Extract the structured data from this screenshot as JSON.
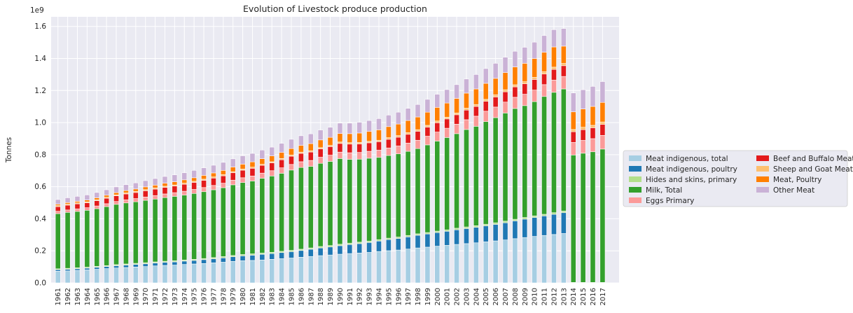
{
  "chart_data": {
    "type": "bar",
    "stacked": true,
    "title": "Evolution of Livestock produce production",
    "xlabel": "",
    "ylabel": "Tonnes",
    "y_multiplier": "1e9",
    "ylim": [
      0,
      1.66
    ],
    "yticks": [
      "0.0",
      "0.2",
      "0.4",
      "0.6",
      "0.8",
      "1.0",
      "1.2",
      "1.4",
      "1.6"
    ],
    "grid": true,
    "legend_placement": "center-right outside",
    "categories": [
      "1961",
      "1962",
      "1963",
      "1964",
      "1965",
      "1966",
      "1967",
      "1968",
      "1969",
      "1970",
      "1971",
      "1972",
      "1973",
      "1974",
      "1975",
      "1976",
      "1977",
      "1978",
      "1979",
      "1980",
      "1981",
      "1982",
      "1983",
      "1984",
      "1985",
      "1986",
      "1987",
      "1988",
      "1989",
      "1990",
      "1991",
      "1992",
      "1993",
      "1994",
      "1995",
      "1996",
      "1997",
      "1998",
      "1999",
      "2000",
      "2001",
      "2002",
      "2003",
      "2004",
      "2005",
      "2006",
      "2007",
      "2008",
      "2009",
      "2010",
      "2011",
      "2012",
      "2013",
      "2014",
      "2015",
      "2016",
      "2017"
    ],
    "series": [
      {
        "name": "Meat indigenous, total",
        "color": "#a6cee3",
        "values": [
          0.073,
          0.075,
          0.078,
          0.081,
          0.085,
          0.089,
          0.093,
          0.096,
          0.099,
          0.102,
          0.106,
          0.109,
          0.111,
          0.115,
          0.118,
          0.121,
          0.125,
          0.129,
          0.134,
          0.138,
          0.14,
          0.143,
          0.147,
          0.151,
          0.155,
          0.16,
          0.165,
          0.17,
          0.174,
          0.179,
          0.183,
          0.186,
          0.19,
          0.196,
          0.201,
          0.205,
          0.211,
          0.218,
          0.223,
          0.229,
          0.234,
          0.24,
          0.245,
          0.25,
          0.256,
          0.262,
          0.268,
          0.276,
          0.283,
          0.29,
          0.296,
          0.302,
          0.308,
          0,
          0,
          0,
          0
        ]
      },
      {
        "name": "Meat indigenous, poultry",
        "color": "#1f78b4",
        "values": [
          0.009,
          0.01,
          0.01,
          0.011,
          0.012,
          0.013,
          0.014,
          0.015,
          0.016,
          0.017,
          0.018,
          0.019,
          0.02,
          0.021,
          0.022,
          0.024,
          0.025,
          0.027,
          0.029,
          0.031,
          0.033,
          0.035,
          0.036,
          0.038,
          0.04,
          0.042,
          0.045,
          0.048,
          0.05,
          0.053,
          0.056,
          0.059,
          0.062,
          0.065,
          0.069,
          0.072,
          0.076,
          0.079,
          0.082,
          0.085,
          0.088,
          0.091,
          0.094,
          0.097,
          0.1,
          0.103,
          0.107,
          0.111,
          0.115,
          0.118,
          0.122,
          0.126,
          0.13,
          0,
          0,
          0,
          0
        ]
      },
      {
        "name": "Hides and skins, primary",
        "color": "#b2df8a",
        "values": [
          0.006,
          0.006,
          0.006,
          0.006,
          0.006,
          0.006,
          0.007,
          0.007,
          0.007,
          0.007,
          0.007,
          0.007,
          0.007,
          0.007,
          0.007,
          0.007,
          0.008,
          0.008,
          0.008,
          0.008,
          0.008,
          0.008,
          0.008,
          0.008,
          0.008,
          0.008,
          0.008,
          0.009,
          0.009,
          0.009,
          0.009,
          0.009,
          0.009,
          0.009,
          0.009,
          0.009,
          0.009,
          0.009,
          0.009,
          0.009,
          0.009,
          0.01,
          0.01,
          0.01,
          0.01,
          0.01,
          0.01,
          0.01,
          0.01,
          0.01,
          0.01,
          0.01,
          0.01,
          0.003,
          0.003,
          0.003,
          0.003
        ]
      },
      {
        "name": "Milk, Total",
        "color": "#33a02c",
        "values": [
          0.344,
          0.349,
          0.352,
          0.355,
          0.36,
          0.368,
          0.376,
          0.381,
          0.384,
          0.389,
          0.392,
          0.397,
          0.402,
          0.405,
          0.411,
          0.417,
          0.423,
          0.43,
          0.441,
          0.449,
          0.455,
          0.467,
          0.476,
          0.487,
          0.501,
          0.51,
          0.509,
          0.519,
          0.525,
          0.535,
          0.523,
          0.518,
          0.517,
          0.513,
          0.516,
          0.519,
          0.525,
          0.532,
          0.547,
          0.562,
          0.576,
          0.59,
          0.608,
          0.62,
          0.64,
          0.656,
          0.675,
          0.691,
          0.698,
          0.713,
          0.735,
          0.751,
          0.762,
          0.795,
          0.806,
          0.815,
          0.832
        ]
      },
      {
        "name": "Eggs Primary",
        "color": "#fb9a99",
        "values": [
          0.015,
          0.015,
          0.016,
          0.016,
          0.017,
          0.018,
          0.018,
          0.019,
          0.02,
          0.021,
          0.022,
          0.023,
          0.023,
          0.024,
          0.025,
          0.026,
          0.027,
          0.028,
          0.029,
          0.03,
          0.031,
          0.032,
          0.033,
          0.034,
          0.035,
          0.036,
          0.037,
          0.038,
          0.039,
          0.04,
          0.041,
          0.042,
          0.043,
          0.045,
          0.047,
          0.049,
          0.051,
          0.052,
          0.054,
          0.056,
          0.058,
          0.059,
          0.061,
          0.063,
          0.065,
          0.066,
          0.068,
          0.07,
          0.071,
          0.072,
          0.074,
          0.076,
          0.078,
          0.078,
          0.08,
          0.082,
          0.085
        ]
      },
      {
        "name": "Beef and Buffalo Meat",
        "color": "#e31a1c",
        "values": [
          0.029,
          0.03,
          0.031,
          0.031,
          0.033,
          0.034,
          0.035,
          0.037,
          0.038,
          0.039,
          0.04,
          0.041,
          0.041,
          0.043,
          0.044,
          0.045,
          0.046,
          0.046,
          0.046,
          0.047,
          0.048,
          0.048,
          0.049,
          0.05,
          0.051,
          0.052,
          0.052,
          0.052,
          0.053,
          0.054,
          0.054,
          0.053,
          0.053,
          0.053,
          0.054,
          0.055,
          0.055,
          0.056,
          0.057,
          0.058,
          0.058,
          0.059,
          0.06,
          0.061,
          0.062,
          0.063,
          0.064,
          0.065,
          0.065,
          0.066,
          0.066,
          0.067,
          0.067,
          0.067,
          0.067,
          0.068,
          0.069
        ]
      },
      {
        "name": "Sheep and Goat Meat",
        "color": "#fdbf6f",
        "values": [
          0.006,
          0.006,
          0.006,
          0.006,
          0.006,
          0.006,
          0.006,
          0.006,
          0.006,
          0.007,
          0.007,
          0.007,
          0.007,
          0.007,
          0.007,
          0.007,
          0.007,
          0.007,
          0.007,
          0.007,
          0.007,
          0.007,
          0.007,
          0.008,
          0.008,
          0.008,
          0.008,
          0.008,
          0.008,
          0.009,
          0.009,
          0.009,
          0.009,
          0.009,
          0.01,
          0.01,
          0.01,
          0.01,
          0.011,
          0.011,
          0.011,
          0.011,
          0.012,
          0.012,
          0.012,
          0.013,
          0.013,
          0.013,
          0.013,
          0.013,
          0.014,
          0.014,
          0.014,
          0.014,
          0.015,
          0.015,
          0.015
        ]
      },
      {
        "name": "Meat, Poultry",
        "color": "#ff7f00",
        "values": [
          0.009,
          0.01,
          0.01,
          0.011,
          0.012,
          0.013,
          0.014,
          0.015,
          0.016,
          0.017,
          0.018,
          0.019,
          0.02,
          0.021,
          0.022,
          0.024,
          0.025,
          0.027,
          0.029,
          0.031,
          0.033,
          0.035,
          0.036,
          0.038,
          0.04,
          0.042,
          0.045,
          0.048,
          0.05,
          0.053,
          0.056,
          0.059,
          0.062,
          0.065,
          0.069,
          0.072,
          0.076,
          0.079,
          0.082,
          0.085,
          0.088,
          0.091,
          0.094,
          0.097,
          0.1,
          0.103,
          0.107,
          0.111,
          0.115,
          0.118,
          0.122,
          0.126,
          0.108,
          0.11,
          0.114,
          0.118,
          0.122
        ]
      },
      {
        "name": "Other Meat",
        "color": "#cab2d6",
        "values": [
          0.029,
          0.03,
          0.031,
          0.032,
          0.033,
          0.034,
          0.036,
          0.037,
          0.038,
          0.039,
          0.041,
          0.042,
          0.043,
          0.044,
          0.046,
          0.047,
          0.048,
          0.05,
          0.051,
          0.052,
          0.053,
          0.054,
          0.055,
          0.057,
          0.058,
          0.06,
          0.061,
          0.062,
          0.063,
          0.065,
          0.066,
          0.067,
          0.068,
          0.07,
          0.072,
          0.074,
          0.076,
          0.078,
          0.08,
          0.082,
          0.084,
          0.086,
          0.088,
          0.09,
          0.092,
          0.094,
          0.096,
          0.098,
          0.1,
          0.102,
          0.104,
          0.108,
          0.11,
          0.118,
          0.12,
          0.125,
          0.13
        ]
      }
    ]
  }
}
